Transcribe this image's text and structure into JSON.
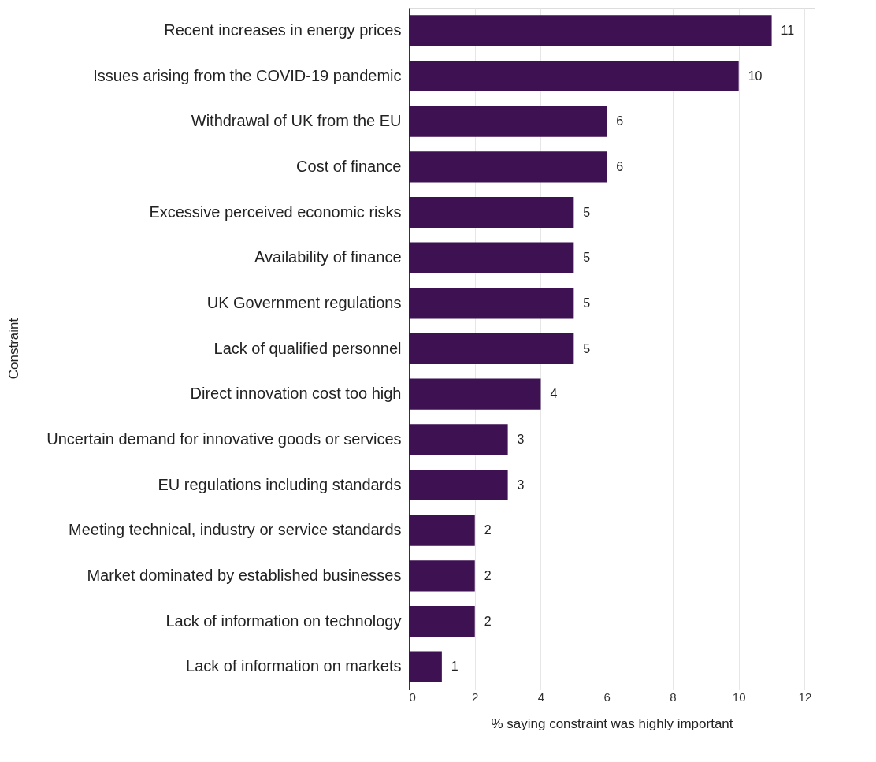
{
  "chart_data": {
    "type": "bar",
    "orientation": "horizontal",
    "xlabel": "% saying constraint was highly important",
    "ylabel": "Constraint",
    "categories": [
      "Recent increases in energy prices",
      "Issues arising from the COVID-19 pandemic",
      "Withdrawal of UK from the EU",
      "Cost of finance",
      "Excessive perceived economic risks",
      "Availability of finance",
      "UK Government regulations",
      "Lack of qualified personnel",
      "Direct innovation cost too high",
      "Uncertain demand for innovative goods or services",
      "EU regulations including standards",
      "Meeting technical, industry or service standards",
      "Market dominated by established businesses",
      "Lack of information on technology",
      "Lack of information on markets"
    ],
    "values": [
      11,
      10,
      6,
      6,
      5,
      5,
      5,
      5,
      4,
      3,
      3,
      2,
      2,
      2,
      1
    ],
    "color": "#3d1152",
    "xlim": [
      0,
      12.3
    ],
    "xticks": [
      0,
      2,
      4,
      6,
      8,
      10,
      12
    ],
    "grid": "x",
    "data_labels": true
  }
}
